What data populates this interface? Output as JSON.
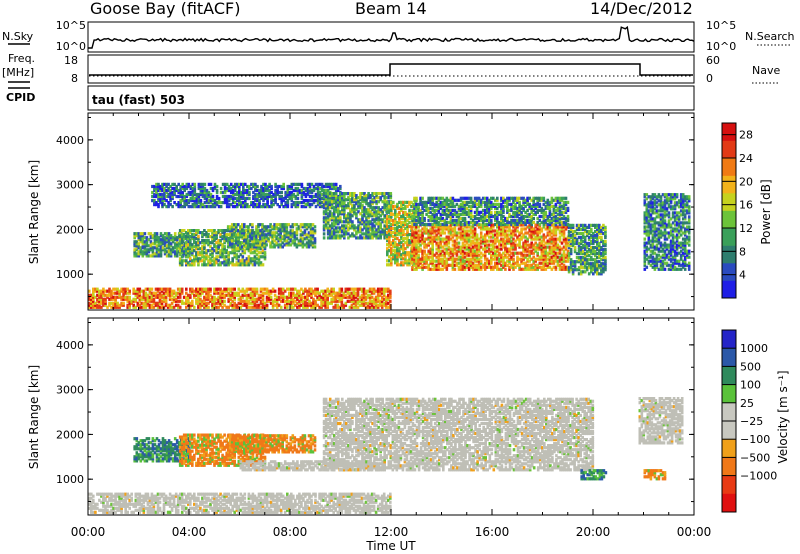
{
  "header": {
    "station": "Goose Bay (fitACF)",
    "beam": "Beam 14",
    "date": "14/Dec/2012"
  },
  "summary": {
    "nsky_label": "N.Sky",
    "nsky_ticks": [
      "10^5",
      "10^0"
    ],
    "nsearch_label": "N.Search",
    "nsearch_ticks": [
      "10^5",
      "10^0"
    ],
    "freq_label": "Freq.",
    "freq_unit": "[MHz]",
    "freq_ticks": [
      "18",
      "8"
    ],
    "nave_label": "Nave",
    "nave_ticks": [
      "60",
      "0"
    ],
    "cpid_label": "CPID",
    "cpid_value": "tau (fast) 503"
  },
  "colors": {
    "power": [
      "#1f1fe6",
      "#2a4bbf",
      "#2e7d6e",
      "#3aa05a",
      "#6cc33a",
      "#c6d21e",
      "#f2b21a",
      "#f07a14",
      "#e23a16",
      "#d61010"
    ],
    "velocity": [
      "#2424c8",
      "#2b58a8",
      "#2f8a5c",
      "#5ac23a",
      "#c8c8c0",
      "#c8c8c0",
      "#f0a01a",
      "#f07818",
      "#e83a14",
      "#e01010"
    ],
    "velocity_dark": "#bfbfb6"
  },
  "chart_data": [
    {
      "type": "heatmap",
      "panel": "power",
      "ylabel": "Slant Range [km]",
      "yticks": [
        "1000",
        "2000",
        "3000",
        "4000"
      ],
      "ylim": [
        200,
        4600
      ],
      "xlim": [
        0,
        24
      ],
      "colorbar": {
        "label": "Power [dB]",
        "ticks": [
          "4",
          "8",
          "12",
          "16",
          "20",
          "24",
          "28"
        ],
        "range": [
          0,
          30
        ]
      },
      "regions": [
        {
          "t0": 0.0,
          "t1": 12.0,
          "r0": 250,
          "r1": 700,
          "value": 22
        },
        {
          "t0": 1.8,
          "t1": 4.0,
          "r0": 1400,
          "r1": 1900,
          "value": 10
        },
        {
          "t0": 3.6,
          "t1": 7.0,
          "r0": 1200,
          "r1": 2000,
          "value": 12
        },
        {
          "t0": 5.5,
          "t1": 9.0,
          "r0": 1600,
          "r1": 2100,
          "value": 11
        },
        {
          "t0": 2.5,
          "t1": 10.0,
          "r0": 2500,
          "r1": 3000,
          "value": 6
        },
        {
          "t0": 9.3,
          "t1": 12.0,
          "r0": 1800,
          "r1": 2800,
          "value": 10
        },
        {
          "t0": 11.8,
          "t1": 13.0,
          "r0": 1200,
          "r1": 2600,
          "value": 16
        },
        {
          "t0": 12.8,
          "t1": 19.0,
          "r0": 1100,
          "r1": 2100,
          "value": 21
        },
        {
          "t0": 12.8,
          "t1": 19.0,
          "r0": 2100,
          "r1": 2700,
          "value": 9
        },
        {
          "t0": 19.0,
          "t1": 20.5,
          "r0": 1000,
          "r1": 2100,
          "value": 10
        },
        {
          "t0": 22.0,
          "t1": 23.8,
          "r0": 1100,
          "r1": 2800,
          "value": 8
        }
      ]
    },
    {
      "type": "heatmap",
      "panel": "velocity",
      "xlabel": "Time UT",
      "ylabel": "Slant Range [km]",
      "xticks": [
        "00:00",
        "04:00",
        "08:00",
        "12:00",
        "16:00",
        "20:00",
        "00:00"
      ],
      "yticks": [
        "1000",
        "2000",
        "3000",
        "4000"
      ],
      "ylim": [
        200,
        4600
      ],
      "xlim": [
        0,
        24
      ],
      "colorbar": {
        "label": "Velocity [m s⁻¹]",
        "ticks": [
          "1000",
          "500",
          "100",
          "25",
          "−25",
          "−100",
          "−500",
          "−1000"
        ]
      },
      "regions": [
        {
          "t0": 0.0,
          "t1": 12.0,
          "r0": 250,
          "r1": 700,
          "value": "ground"
        },
        {
          "t0": 1.8,
          "t1": 4.0,
          "r0": 1400,
          "r1": 1900,
          "value": "positive"
        },
        {
          "t0": 3.6,
          "t1": 7.0,
          "r0": 1300,
          "r1": 2000,
          "value": "negative"
        },
        {
          "t0": 5.5,
          "t1": 9.0,
          "r0": 1600,
          "r1": 2000,
          "value": "negative"
        },
        {
          "t0": 6.0,
          "t1": 11.5,
          "r0": 1200,
          "r1": 1400,
          "value": "ground"
        },
        {
          "t0": 9.3,
          "t1": 20.0,
          "r0": 1200,
          "r1": 2800,
          "value": "ground"
        },
        {
          "t0": 19.5,
          "t1": 20.5,
          "r0": 1000,
          "r1": 1200,
          "value": "positive"
        },
        {
          "t0": 21.8,
          "t1": 23.5,
          "r0": 1800,
          "r1": 2800,
          "value": "ground"
        },
        {
          "t0": 22.0,
          "t1": 22.8,
          "r0": 1000,
          "r1": 1200,
          "value": "negative"
        }
      ]
    }
  ]
}
